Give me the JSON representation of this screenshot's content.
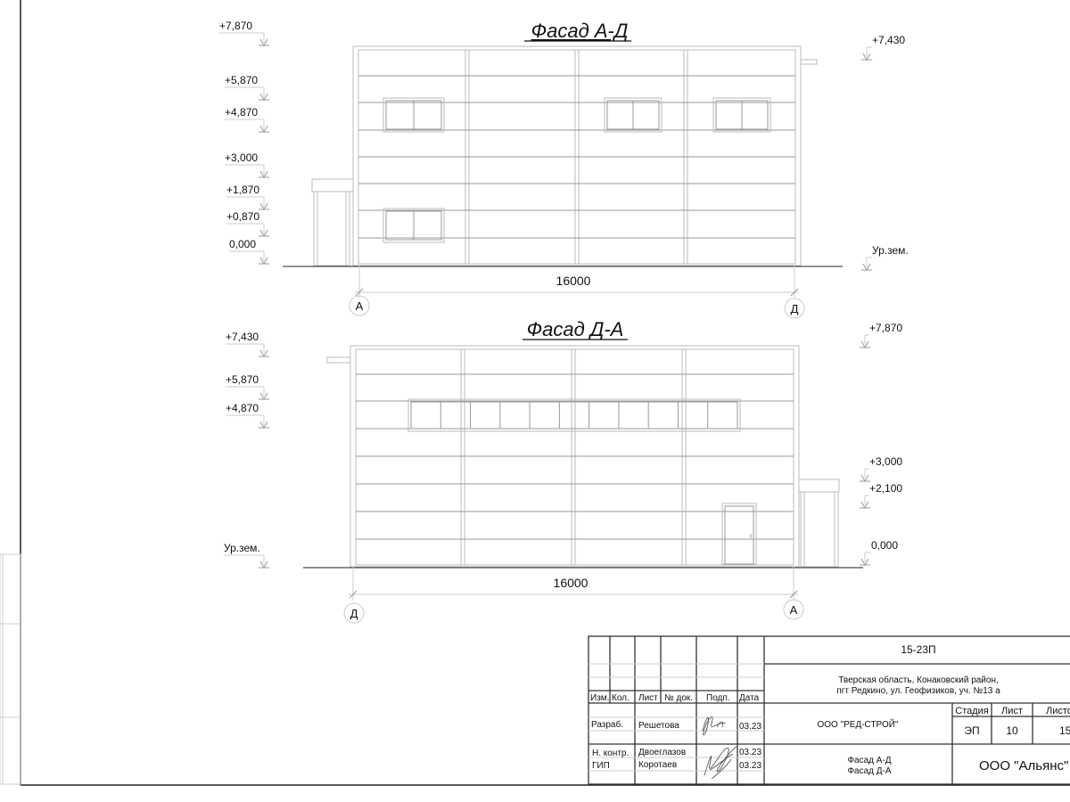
{
  "facade1": {
    "title": "Фасад А-Д",
    "levels_left": [
      "+7,870",
      "+5,870",
      "+4,870",
      "+3,000",
      "+1,870",
      "+0,870",
      "0,000"
    ],
    "levels_right": [
      "+7,430",
      "Ур.зем."
    ],
    "dimension": "16000",
    "axis_left": "А",
    "axis_right": "Д"
  },
  "facade2": {
    "title": "Фасад Д-А",
    "levels_left": [
      "+7,430",
      "+5,870",
      "+4,870",
      "Ур.зем."
    ],
    "levels_right": [
      "+7,870",
      "+3,000",
      "+2,100",
      "0,000"
    ],
    "dimension": "16000",
    "axis_left": "Д",
    "axis_right": "А"
  },
  "title_block": {
    "headers": [
      "Изм.",
      "Кол.",
      "Лист",
      "№ док.",
      "Подп.",
      "Дата"
    ],
    "roles": [
      {
        "role": "Разраб.",
        "name": "Решетова",
        "date": "03.23"
      },
      {
        "role": "Н. контр.",
        "name": "Двоеглазов",
        "date": "03.23"
      },
      {
        "role": "ГИП",
        "name": "Коротаев",
        "date": "03.23"
      }
    ],
    "project_code": "15-23П",
    "address_line1": "Тверская область, Конаковский район,",
    "address_line2": "пгт Редкино, ул. Геофизиков, уч. №13 а",
    "designer_org": "ООО \"РЕД-СТРОЙ\"",
    "sheet_headers": [
      "Стадия",
      "Лист",
      "Листов"
    ],
    "stage": "ЭП",
    "sheet": "10",
    "sheets_total": "15",
    "sheet_title_line1": "Фасад А-Д",
    "sheet_title_line2": "Фасад Д-А",
    "client_org": "ООО \"Альянс\""
  }
}
